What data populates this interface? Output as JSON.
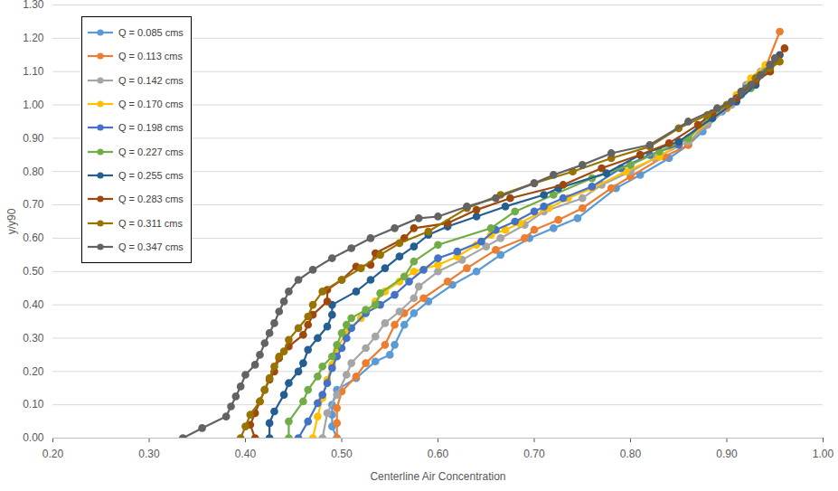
{
  "chart_data": {
    "type": "line",
    "x_label": "Centerline Air Concentration",
    "y_label": "y/y90",
    "xlim": [
      0.2,
      1.0
    ],
    "ylim": [
      0.0,
      1.3
    ],
    "xticks": [
      {
        "value": 0.2,
        "label": "0.20"
      },
      {
        "value": 0.3,
        "label": "0.30"
      },
      {
        "value": 0.4,
        "label": "0.40"
      },
      {
        "value": 0.5,
        "label": "0.50"
      },
      {
        "value": 0.6,
        "label": "0.60"
      },
      {
        "value": 0.7,
        "label": "0.70"
      },
      {
        "value": 0.8,
        "label": "0.80"
      },
      {
        "value": 0.9,
        "label": "0.90"
      },
      {
        "value": 1.0,
        "label": "1.00"
      }
    ],
    "yticks": [
      {
        "value": 0.0,
        "label": "0.00"
      },
      {
        "value": 0.1,
        "label": "0.10"
      },
      {
        "value": 0.2,
        "label": "0.20"
      },
      {
        "value": 0.3,
        "label": "0.30"
      },
      {
        "value": 0.4,
        "label": "0.40"
      },
      {
        "value": 0.5,
        "label": "0.50"
      },
      {
        "value": 0.6,
        "label": "0.60"
      },
      {
        "value": 0.7,
        "label": "0.70"
      },
      {
        "value": 0.8,
        "label": "0.80"
      },
      {
        "value": 0.9,
        "label": "0.90"
      },
      {
        "value": 1.0,
        "label": "1.00"
      },
      {
        "value": 1.1,
        "label": "1.10"
      },
      {
        "value": 1.2,
        "label": "1.20"
      },
      {
        "value": 1.3,
        "label": "1.30"
      }
    ],
    "grid": "y",
    "legend": "top-left",
    "marker": "circle",
    "line_style": "solid",
    "series": [
      {
        "name": "Q = 0.085 cms",
        "color": "#5B9BD5",
        "x": [
          0.495,
          0.49,
          0.49,
          0.49,
          0.495,
          0.515,
          0.535,
          0.55,
          0.555,
          0.565,
          0.575,
          0.59,
          0.615,
          0.64,
          0.665,
          0.695,
          0.72,
          0.745,
          0.785,
          0.81,
          0.84,
          0.86,
          0.875,
          0.895,
          0.915,
          0.925,
          0.94
        ],
        "values": [
          0.0,
          0.035,
          0.07,
          0.1,
          0.145,
          0.18,
          0.23,
          0.25,
          0.28,
          0.34,
          0.375,
          0.41,
          0.46,
          0.5,
          0.55,
          0.6,
          0.63,
          0.66,
          0.75,
          0.79,
          0.84,
          0.88,
          0.92,
          0.98,
          1.03,
          1.07,
          1.1
        ]
      },
      {
        "name": "Q = 0.113 cms",
        "color": "#ED7D31",
        "x": [
          0.495,
          0.495,
          0.495,
          0.5,
          0.515,
          0.525,
          0.545,
          0.555,
          0.565,
          0.585,
          0.61,
          0.63,
          0.66,
          0.69,
          0.7,
          0.725,
          0.75,
          0.78,
          0.8,
          0.835,
          0.86,
          0.875,
          0.9,
          0.925,
          0.94,
          0.955
        ],
        "values": [
          0.0,
          0.045,
          0.09,
          0.14,
          0.185,
          0.225,
          0.28,
          0.34,
          0.375,
          0.42,
          0.47,
          0.51,
          0.565,
          0.6,
          0.625,
          0.655,
          0.69,
          0.75,
          0.785,
          0.845,
          0.88,
          0.935,
          0.99,
          1.06,
          1.11,
          1.22
        ]
      },
      {
        "name": "Q = 0.142 cms",
        "color": "#A5A5A5",
        "x": [
          0.48,
          0.485,
          0.495,
          0.505,
          0.51,
          0.525,
          0.535,
          0.545,
          0.56,
          0.575,
          0.58,
          0.6,
          0.625,
          0.65,
          0.665,
          0.69,
          0.71,
          0.75,
          0.77,
          0.8,
          0.825,
          0.86,
          0.88,
          0.905,
          0.92,
          0.935,
          0.95
        ],
        "values": [
          0.0,
          0.075,
          0.13,
          0.19,
          0.225,
          0.27,
          0.305,
          0.345,
          0.38,
          0.42,
          0.455,
          0.5,
          0.535,
          0.575,
          0.6,
          0.64,
          0.68,
          0.72,
          0.76,
          0.8,
          0.84,
          0.89,
          0.94,
          1.0,
          1.06,
          1.1,
          1.14
        ]
      },
      {
        "name": "Q = 0.170 cms",
        "color": "#FFC000",
        "x": [
          0.47,
          0.475,
          0.48,
          0.485,
          0.49,
          0.495,
          0.505,
          0.52,
          0.535,
          0.545,
          0.56,
          0.575,
          0.6,
          0.62,
          0.64,
          0.655,
          0.67,
          0.685,
          0.715,
          0.735,
          0.76,
          0.795,
          0.83,
          0.86,
          0.885,
          0.91,
          0.925,
          0.94
        ],
        "values": [
          0.0,
          0.065,
          0.12,
          0.175,
          0.22,
          0.265,
          0.32,
          0.36,
          0.41,
          0.44,
          0.47,
          0.5,
          0.52,
          0.545,
          0.58,
          0.61,
          0.625,
          0.645,
          0.69,
          0.72,
          0.75,
          0.8,
          0.845,
          0.9,
          0.96,
          1.03,
          1.08,
          1.12
        ]
      },
      {
        "name": "Q = 0.198 cms",
        "color": "#4472C4",
        "x": [
          0.455,
          0.465,
          0.475,
          0.48,
          0.485,
          0.49,
          0.495,
          0.5,
          0.505,
          0.51,
          0.525,
          0.54,
          0.555,
          0.57,
          0.585,
          0.6,
          0.62,
          0.645,
          0.66,
          0.68,
          0.7,
          0.71,
          0.73,
          0.76,
          0.79,
          0.82,
          0.85,
          0.88,
          0.9,
          0.92,
          0.93,
          0.945
        ],
        "values": [
          0.0,
          0.05,
          0.105,
          0.13,
          0.165,
          0.21,
          0.245,
          0.27,
          0.3,
          0.33,
          0.375,
          0.4,
          0.43,
          0.47,
          0.505,
          0.54,
          0.56,
          0.59,
          0.625,
          0.65,
          0.68,
          0.695,
          0.72,
          0.755,
          0.81,
          0.85,
          0.88,
          0.96,
          1.0,
          1.05,
          1.08,
          1.12
        ]
      },
      {
        "name": "Q = 0.227 cms",
        "color": "#70AD47",
        "x": [
          0.445,
          0.445,
          0.46,
          0.465,
          0.475,
          0.48,
          0.49,
          0.495,
          0.5,
          0.505,
          0.51,
          0.525,
          0.535,
          0.54,
          0.565,
          0.575,
          0.6,
          0.655,
          0.68,
          0.72,
          0.76,
          0.8,
          0.83,
          0.86,
          0.88,
          0.9,
          0.925,
          0.94,
          0.95
        ],
        "values": [
          0.0,
          0.05,
          0.11,
          0.145,
          0.185,
          0.215,
          0.245,
          0.28,
          0.315,
          0.34,
          0.36,
          0.385,
          0.4,
          0.435,
          0.485,
          0.53,
          0.58,
          0.63,
          0.68,
          0.73,
          0.78,
          0.82,
          0.86,
          0.9,
          0.96,
          1.0,
          1.05,
          1.1,
          1.13
        ]
      },
      {
        "name": "Q = 0.255 cms",
        "color": "#255E91",
        "x": [
          0.425,
          0.425,
          0.43,
          0.44,
          0.445,
          0.455,
          0.46,
          0.465,
          0.475,
          0.485,
          0.49,
          0.49,
          0.515,
          0.53,
          0.545,
          0.56,
          0.575,
          0.59,
          0.61,
          0.64,
          0.67,
          0.71,
          0.725,
          0.775,
          0.81,
          0.85,
          0.885,
          0.91,
          0.93,
          0.945,
          0.955
        ],
        "values": [
          0.0,
          0.045,
          0.08,
          0.13,
          0.165,
          0.2,
          0.225,
          0.265,
          0.3,
          0.335,
          0.37,
          0.4,
          0.44,
          0.475,
          0.51,
          0.545,
          0.575,
          0.61,
          0.635,
          0.665,
          0.695,
          0.73,
          0.75,
          0.795,
          0.85,
          0.89,
          0.96,
          1.01,
          1.06,
          1.12,
          1.15
        ]
      },
      {
        "name": "Q = 0.283 cms",
        "color": "#9E480E",
        "x": [
          0.41,
          0.405,
          0.41,
          0.415,
          0.42,
          0.425,
          0.43,
          0.435,
          0.445,
          0.46,
          0.465,
          0.47,
          0.485,
          0.485,
          0.5,
          0.515,
          0.53,
          0.535,
          0.565,
          0.575,
          0.61,
          0.64,
          0.675,
          0.73,
          0.77,
          0.81,
          0.84,
          0.87,
          0.885,
          0.91,
          0.93,
          0.945,
          0.96
        ],
        "values": [
          0.0,
          0.04,
          0.075,
          0.11,
          0.145,
          0.175,
          0.2,
          0.24,
          0.275,
          0.31,
          0.34,
          0.37,
          0.41,
          0.445,
          0.475,
          0.515,
          0.52,
          0.555,
          0.6,
          0.63,
          0.645,
          0.685,
          0.72,
          0.76,
          0.81,
          0.85,
          0.885,
          0.94,
          0.975,
          1.02,
          1.07,
          1.1,
          1.17
        ]
      },
      {
        "name": "Q = 0.311 cms",
        "color": "#997300",
        "x": [
          0.395,
          0.4,
          0.405,
          0.415,
          0.42,
          0.425,
          0.43,
          0.435,
          0.44,
          0.445,
          0.455,
          0.465,
          0.47,
          0.48,
          0.5,
          0.52,
          0.54,
          0.56,
          0.59,
          0.63,
          0.665,
          0.7,
          0.74,
          0.78,
          0.82,
          0.85,
          0.88,
          0.9,
          0.915,
          0.93,
          0.945,
          0.955
        ],
        "values": [
          0.0,
          0.035,
          0.07,
          0.11,
          0.145,
          0.18,
          0.215,
          0.245,
          0.26,
          0.295,
          0.33,
          0.365,
          0.4,
          0.44,
          0.475,
          0.51,
          0.55,
          0.585,
          0.62,
          0.69,
          0.73,
          0.765,
          0.8,
          0.84,
          0.875,
          0.93,
          0.97,
          1.0,
          1.04,
          1.08,
          1.11,
          1.13
        ]
      },
      {
        "name": "Q = 0.347 cms",
        "color": "#636363",
        "x": [
          0.335,
          0.355,
          0.38,
          0.385,
          0.39,
          0.395,
          0.4,
          0.41,
          0.415,
          0.42,
          0.425,
          0.43,
          0.435,
          0.44,
          0.445,
          0.455,
          0.47,
          0.49,
          0.51,
          0.53,
          0.555,
          0.58,
          0.6,
          0.63,
          0.66,
          0.7,
          0.72,
          0.75,
          0.78,
          0.82,
          0.86,
          0.89,
          0.905,
          0.915,
          0.925,
          0.935,
          0.945,
          0.95
        ],
        "values": [
          0.0,
          0.03,
          0.065,
          0.095,
          0.125,
          0.155,
          0.19,
          0.22,
          0.25,
          0.285,
          0.315,
          0.345,
          0.38,
          0.41,
          0.44,
          0.475,
          0.505,
          0.54,
          0.57,
          0.6,
          0.63,
          0.66,
          0.665,
          0.695,
          0.72,
          0.765,
          0.79,
          0.82,
          0.855,
          0.88,
          0.95,
          0.99,
          1.01,
          1.04,
          1.06,
          1.09,
          1.12,
          1.14
        ]
      }
    ]
  }
}
